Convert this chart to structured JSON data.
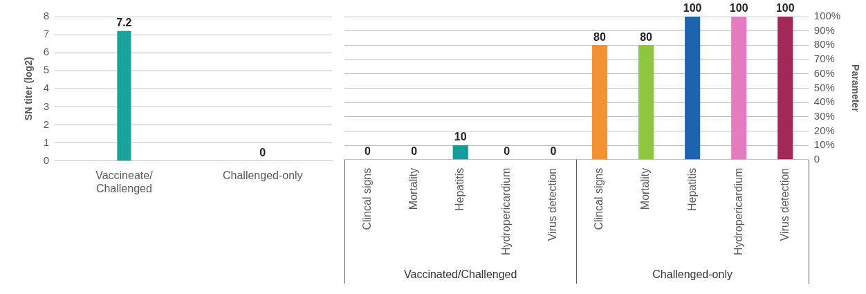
{
  "chart_data": [
    {
      "type": "bar",
      "ylabel": "SN titer (log2)",
      "categories": [
        "Vaccineate/Challenged",
        "Challenged-only"
      ],
      "series": [
        {
          "color": "#1aa39a",
          "values": [
            7.2,
            0
          ]
        }
      ],
      "ylim": [
        0,
        8
      ],
      "yticks": [
        0,
        1,
        2,
        3,
        4,
        5,
        6,
        7,
        8
      ],
      "grid": "y",
      "data_labels": true
    },
    {
      "type": "bar",
      "y2label": "Parameter",
      "categories": [
        "Clincal signs",
        "Mortality",
        "Hepatitis",
        "Hydropericardium",
        "Virus detection",
        "Clincal signs",
        "Mortality",
        "Hepatitis",
        "Hydropericardium",
        "Virus detection"
      ],
      "series": [
        {
          "axis": "y2",
          "colors": [
            "#139c9a",
            "#139c9a",
            "#139c9a",
            "#139c9a",
            "#139c9a",
            "#f39232",
            "#8dc63f",
            "#1e63b0",
            "#e67cc0",
            "#a32858"
          ],
          "values": [
            0,
            0,
            10,
            0,
            0,
            80,
            80,
            100,
            100,
            100
          ]
        }
      ],
      "y2lim": [
        0,
        100
      ],
      "y2ticks": [
        0,
        {
          "value": 10,
          "label": "10%"
        },
        {
          "value": 20,
          "label": "20%"
        },
        {
          "value": 30,
          "label": "30%"
        },
        {
          "value": 40,
          "label": "40%"
        },
        {
          "value": 50,
          "label": "50%"
        },
        {
          "value": 60,
          "label": "60%"
        },
        {
          "value": 70,
          "label": "70%"
        },
        {
          "value": 80,
          "label": "80%"
        },
        {
          "value": 90,
          "label": "90%"
        },
        {
          "value": 100,
          "label": "100%"
        }
      ],
      "grid": "y",
      "data_labels": true,
      "annotations": [
        "Vaccinated/Challenged",
        "Challenged-only"
      ]
    }
  ]
}
